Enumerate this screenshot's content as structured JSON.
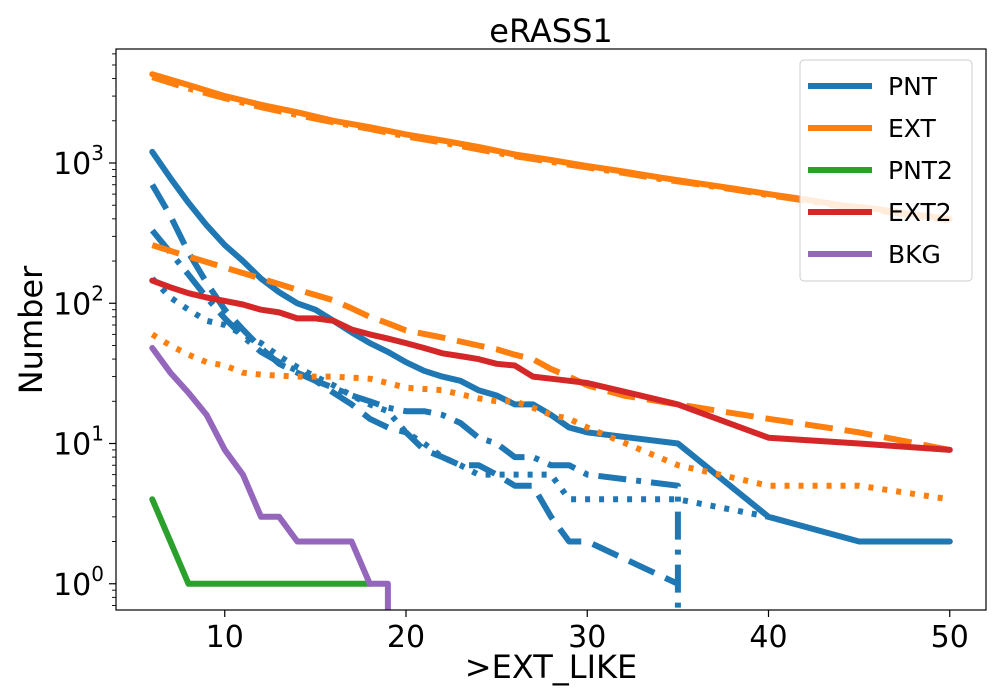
{
  "chart_data": {
    "type": "line",
    "title": "eRASS1",
    "xlabel": ">EXT_LIKE",
    "ylabel": "Number",
    "xlim": [
      4,
      52
    ],
    "ylim": [
      0.65,
      6500
    ],
    "yscale": "log",
    "x_ticks": [
      10,
      20,
      30,
      40,
      50
    ],
    "y_ticks": [
      {
        "value": 1,
        "base": "10",
        "exp": "0"
      },
      {
        "value": 10,
        "base": "10",
        "exp": "1"
      },
      {
        "value": 100,
        "base": "10",
        "exp": "2"
      },
      {
        "value": 1000,
        "base": "10",
        "exp": "3"
      }
    ],
    "grid": false,
    "legend": "top-right",
    "legend_entries": [
      {
        "label": "PNT",
        "color": "#1f77b4"
      },
      {
        "label": "EXT",
        "color": "#ff7f0e"
      },
      {
        "label": "PNT2",
        "color": "#2ca02c"
      },
      {
        "label": "EXT2",
        "color": "#d62728"
      },
      {
        "label": "BKG",
        "color": "#9467bd"
      }
    ],
    "series": [
      {
        "label": "PNT",
        "color": "#1f77b4",
        "style": "solid",
        "x": [
          6,
          7,
          8,
          9,
          10,
          11,
          12,
          13,
          14,
          15,
          16,
          17,
          18,
          19,
          20,
          21,
          22,
          23,
          24,
          25,
          26,
          27,
          28,
          29,
          30,
          35,
          40,
          45,
          50
        ],
        "y": [
          1200,
          780,
          520,
          360,
          260,
          200,
          150,
          120,
          100,
          90,
          75,
          62,
          52,
          45,
          38,
          33,
          30,
          28,
          24,
          22,
          19,
          19,
          16,
          13,
          12,
          10,
          3,
          2,
          2
        ]
      },
      {
        "label": "PNT",
        "color": "#1f77b4",
        "style": "dashed",
        "x": [
          6,
          7,
          8,
          9,
          10,
          11,
          12,
          13,
          14,
          15,
          16,
          17,
          18,
          19,
          20,
          21,
          22,
          23,
          24,
          25,
          26,
          27,
          28,
          29,
          30,
          35
        ],
        "y": [
          700,
          420,
          230,
          140,
          90,
          65,
          48,
          37,
          32,
          28,
          23,
          19,
          15,
          13,
          12,
          9,
          8,
          7,
          7,
          6,
          5,
          5,
          3,
          2,
          2,
          1
        ]
      },
      {
        "label": "PNT",
        "color": "#1f77b4",
        "style": "dashdot",
        "x": [
          6,
          7,
          8,
          9,
          10,
          11,
          12,
          13,
          14,
          15,
          16,
          17,
          18,
          19,
          20,
          21,
          22,
          23,
          24,
          25,
          26,
          27,
          28,
          29,
          30,
          35,
          35
        ],
        "y": [
          330,
          230,
          160,
          110,
          78,
          58,
          45,
          38,
          33,
          28,
          25,
          22,
          20,
          18,
          17,
          17,
          16,
          14,
          11,
          10,
          8,
          8,
          7,
          7,
          6,
          5,
          0.6
        ]
      },
      {
        "label": "PNT",
        "color": "#1f77b4",
        "style": "dotted",
        "x": [
          6,
          7,
          8,
          9,
          10,
          11,
          12,
          13,
          14,
          15,
          16,
          17,
          18,
          19,
          20,
          21,
          22,
          23,
          24,
          25,
          26,
          27,
          28,
          29,
          30,
          35,
          40
        ],
        "y": [
          150,
          110,
          90,
          75,
          70,
          60,
          52,
          42,
          35,
          30,
          26,
          22,
          19,
          17,
          12,
          10,
          8,
          7,
          6,
          6,
          6,
          6,
          6,
          4,
          4,
          4,
          3
        ]
      },
      {
        "label": "EXT",
        "color": "#ff7f0e",
        "style": "solid",
        "x": [
          6,
          8,
          10,
          12,
          14,
          16,
          18,
          20,
          22,
          24,
          26,
          28,
          30,
          32,
          34,
          36,
          38,
          40,
          42,
          44,
          46,
          48,
          50
        ],
        "y": [
          4300,
          3600,
          3000,
          2600,
          2300,
          2000,
          1800,
          1600,
          1450,
          1300,
          1150,
          1050,
          950,
          870,
          790,
          720,
          660,
          600,
          550,
          500,
          470,
          430,
          400
        ]
      },
      {
        "label": "EXT",
        "color": "#ff7f0e",
        "style": "dashed",
        "x": [
          6,
          8,
          10,
          12,
          14,
          16,
          17,
          18,
          19,
          20,
          22,
          24,
          25,
          26,
          27,
          28,
          29,
          30,
          32,
          35,
          40,
          45,
          50
        ],
        "y": [
          260,
          215,
          180,
          150,
          125,
          105,
          92,
          80,
          72,
          64,
          57,
          50,
          47,
          43,
          40,
          34,
          30,
          26,
          22,
          19,
          15,
          12,
          9
        ]
      },
      {
        "label": "EXT",
        "color": "#ff7f0e",
        "style": "dashdot",
        "x": [
          6,
          8,
          10,
          12,
          14,
          16,
          18,
          20,
          22,
          24,
          26,
          28,
          30,
          32,
          34,
          36,
          38,
          40,
          42,
          44,
          46,
          48,
          50
        ],
        "y": [
          4100,
          3400,
          2900,
          2500,
          2200,
          1950,
          1750,
          1550,
          1400,
          1250,
          1120,
          1020,
          930,
          850,
          770,
          710,
          650,
          590,
          540,
          490,
          460,
          420,
          390
        ]
      },
      {
        "label": "EXT",
        "color": "#ff7f0e",
        "style": "dotted",
        "x": [
          6,
          7,
          8,
          9,
          10,
          11,
          12,
          14,
          16,
          18,
          19,
          20,
          22,
          24,
          25,
          26,
          27,
          28,
          29,
          30,
          35,
          40,
          45,
          50
        ],
        "y": [
          60,
          50,
          43,
          38,
          36,
          32,
          31,
          30,
          30,
          29,
          27,
          25,
          24,
          21,
          20,
          20,
          18,
          16,
          15,
          13,
          7,
          5,
          5,
          4
        ]
      },
      {
        "label": "PNT2",
        "color": "#2ca02c",
        "style": "solid",
        "x": [
          6,
          8,
          9,
          10,
          12,
          14,
          16,
          17,
          18
        ],
        "y": [
          4,
          1,
          1,
          1,
          1,
          1,
          1,
          1,
          1
        ]
      },
      {
        "label": "EXT2",
        "color": "#d62728",
        "style": "solid",
        "x": [
          6,
          7,
          8,
          9,
          10,
          11,
          12,
          13,
          14,
          15,
          16,
          17,
          18,
          19,
          20,
          21,
          22,
          23,
          24,
          25,
          26,
          27,
          28,
          29,
          30,
          35,
          40,
          45,
          50
        ],
        "y": [
          145,
          130,
          118,
          110,
          104,
          98,
          90,
          86,
          78,
          78,
          75,
          65,
          60,
          56,
          52,
          48,
          44,
          42,
          40,
          37,
          36,
          30,
          29,
          28,
          27,
          19,
          11,
          10,
          9
        ]
      },
      {
        "label": "BKG",
        "color": "#9467bd",
        "style": "solid",
        "x": [
          6,
          7,
          8,
          9,
          10,
          11,
          12,
          13,
          14,
          15,
          16,
          17,
          18,
          19,
          19
        ],
        "y": [
          48,
          32,
          23,
          16,
          9,
          6,
          3,
          3,
          2,
          2,
          2,
          2,
          1,
          1,
          0.6
        ]
      }
    ]
  }
}
